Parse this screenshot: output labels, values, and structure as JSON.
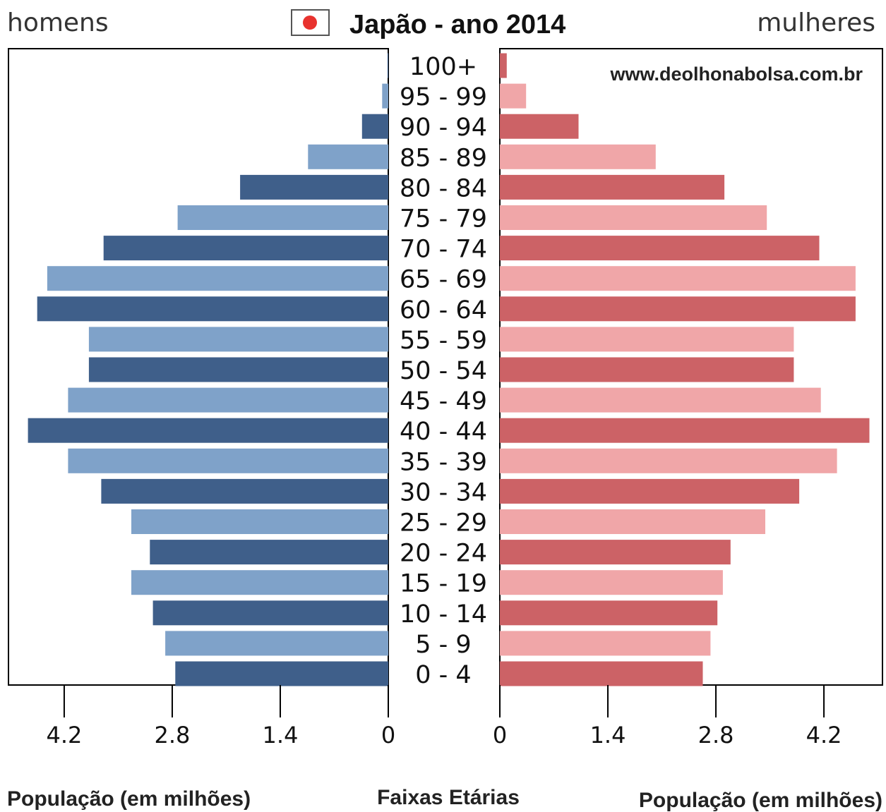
{
  "header": {
    "left_label": "homens",
    "title": "Japão - ano 2014",
    "right_label": "mulheres",
    "flag_icon": "japan-flag-icon"
  },
  "watermark": "www.deolhonabolsa.com.br",
  "footer": {
    "left_axis_title": "População (em milhões)",
    "center_title": "Faixas Etárias",
    "right_axis_title": "População (em milhões)"
  },
  "chart_data": {
    "type": "bar",
    "subtype": "population-pyramid",
    "title": "Japão - ano 2014",
    "categories": [
      "0 - 4",
      "5 - 9",
      "10 - 14",
      "15 - 19",
      "20 - 24",
      "25 - 29",
      "30 - 34",
      "35 - 39",
      "40 - 44",
      "45 - 49",
      "50 - 54",
      "55 - 59",
      "60 - 64",
      "65 - 69",
      "70 - 74",
      "75 - 79",
      "80 - 84",
      "85 - 89",
      "90 - 94",
      "95 - 99",
      "100+"
    ],
    "series": [
      {
        "name": "homens",
        "values": [
          2.76,
          2.89,
          3.05,
          3.33,
          3.09,
          3.33,
          3.72,
          4.15,
          4.67,
          4.15,
          3.88,
          3.88,
          4.55,
          4.42,
          3.69,
          2.73,
          1.92,
          1.04,
          0.34,
          0.08,
          0.01
        ]
      },
      {
        "name": "mulheres",
        "values": [
          2.63,
          2.73,
          2.82,
          2.89,
          2.99,
          3.44,
          3.88,
          4.37,
          4.79,
          4.16,
          3.81,
          3.81,
          4.61,
          4.61,
          4.14,
          3.46,
          2.91,
          2.02,
          1.02,
          0.34,
          0.09
        ]
      }
    ],
    "xlabel": "População (em milhões)",
    "ylabel": "Faixas Etárias",
    "xlim": [
      0,
      4.9
    ],
    "xticks": [
      0,
      1.4,
      2.8,
      4.2
    ],
    "xtick_labels": [
      "0",
      "1.4",
      "2.8",
      "4.2"
    ],
    "legend": "none",
    "grid": false,
    "colors": {
      "men_dark": "#3f5f8a",
      "men_light": "#7fa2c9",
      "women_dark": "#cc6266",
      "women_light": "#f0a6a8",
      "flag_red": "#e8322e"
    }
  }
}
